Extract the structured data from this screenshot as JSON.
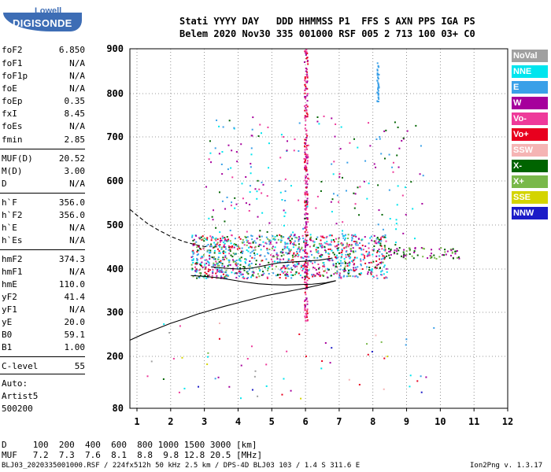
{
  "logo": {
    "top": "Lowell",
    "bottom": "DIGISONDE"
  },
  "header": {
    "line1": "Stati YYYY DAY   DDD HHMMSS P1  FFS S AXN PPS IGA PS",
    "line2": "Belem 2020 Nov30 335 001000 RSF 005 2 713 100 03+ C0"
  },
  "params": [
    {
      "k": "foF2",
      "v": "6.850"
    },
    {
      "k": "foF1",
      "v": "N/A"
    },
    {
      "k": "foF1p",
      "v": "N/A"
    },
    {
      "k": "foE",
      "v": "N/A"
    },
    {
      "k": "foEp",
      "v": "0.35"
    },
    {
      "k": "fxI",
      "v": "8.45"
    },
    {
      "k": "foEs",
      "v": "N/A"
    },
    {
      "k": "fmin",
      "v": "2.85"
    },
    {
      "k": "MUF(D)",
      "v": "20.52"
    },
    {
      "k": "M(D)",
      "v": "3.00"
    },
    {
      "k": "D",
      "v": "N/A"
    },
    {
      "k": "h`F",
      "v": "356.0"
    },
    {
      "k": "h`F2",
      "v": "356.0"
    },
    {
      "k": "h`E",
      "v": "N/A"
    },
    {
      "k": "h`Es",
      "v": "N/A"
    },
    {
      "k": "hmF2",
      "v": "374.3"
    },
    {
      "k": "hmF1",
      "v": "N/A"
    },
    {
      "k": "hmE",
      "v": "110.0"
    },
    {
      "k": "yF2",
      "v": "41.4"
    },
    {
      "k": "yF1",
      "v": "N/A"
    },
    {
      "k": "yE",
      "v": "20.0"
    },
    {
      "k": "B0",
      "v": "59.1"
    },
    {
      "k": "B1",
      "v": "1.00"
    },
    {
      "k": "C-level",
      "v": "55"
    }
  ],
  "side": {
    "auto": "Auto:",
    "artist": "Artist5",
    "version": "500200"
  },
  "legend": [
    {
      "label": "NoVal",
      "color": "#a0a0a0"
    },
    {
      "label": "NNE",
      "color": "#00e5ee"
    },
    {
      "label": "E",
      "color": "#3aa0e8"
    },
    {
      "label": "W",
      "color": "#a6009c"
    },
    {
      "label": "Vo-",
      "color": "#ee3a9a"
    },
    {
      "label": "Vo+",
      "color": "#e8001e"
    },
    {
      "label": "SSW",
      "color": "#f5b4b4"
    },
    {
      "label": "X-",
      "color": "#006400"
    },
    {
      "label": "X+",
      "color": "#79b84a"
    },
    {
      "label": "SSE",
      "color": "#d4d400"
    },
    {
      "label": "NNW",
      "color": "#1c1cc8"
    }
  ],
  "footer": {
    "dline": "D     100  200  400  600  800 1000 1500 3000 [km]",
    "mline": "MUF   7.2  7.3  7.6  8.1  8.8  9.8 12.8 20.5 [MHz]",
    "info": "BLJ03_2020335001000.RSF / 224fx512h 50 kHz 2.5 km / DPS-4D BLJ03 103 / 1.4 S 311.6 E",
    "prog": "Ion2Png v. 1.3.17"
  },
  "chart_data": {
    "type": "scatter",
    "xlim": [
      0.8,
      12
    ],
    "ylim": [
      80,
      900
    ],
    "x_ticks": [
      1,
      2,
      3,
      4,
      5,
      6,
      7,
      8,
      9,
      10,
      11,
      12
    ],
    "y_ticks": [
      900,
      800,
      700,
      600,
      500,
      400,
      300,
      200,
      80
    ],
    "grid": true,
    "series": [
      {
        "name": "hmF trace (solid)",
        "style": "solid",
        "x": [
          0.8,
          1.2,
          1.6,
          2.0,
          2.4,
          2.8,
          3.2,
          3.6,
          4.0,
          4.4,
          4.8,
          5.2,
          5.6,
          6.0,
          6.4,
          6.9
        ],
        "y": [
          237,
          251,
          263,
          275,
          285,
          296,
          305,
          314,
          322,
          330,
          338,
          344,
          350,
          356,
          363,
          373
        ]
      },
      {
        "name": "extrapolated profile (dashed)",
        "style": "dashed",
        "x": [
          0.8,
          1.0,
          1.3,
          1.6,
          2.0,
          2.4,
          2.8,
          3.1
        ],
        "y": [
          535,
          522,
          504,
          490,
          474,
          462,
          454,
          450
        ]
      },
      {
        "name": "O-trace lower",
        "style": "solid",
        "x": [
          2.6,
          3.0,
          3.4,
          3.8,
          4.2,
          4.6,
          5.0,
          5.4,
          5.8,
          6.2,
          6.6,
          6.9
        ],
        "y": [
          385,
          383,
          380,
          375,
          370,
          366,
          364,
          363,
          364,
          365,
          368,
          373
        ]
      },
      {
        "name": "O-trace upper",
        "style": "solid",
        "x": [
          3.2,
          3.6,
          4.0,
          4.4,
          4.8,
          5.2,
          5.6,
          6.0,
          6.4,
          6.8
        ],
        "y": [
          405,
          402,
          400,
          402,
          408,
          414,
          416,
          418,
          420,
          425
        ]
      }
    ]
  }
}
